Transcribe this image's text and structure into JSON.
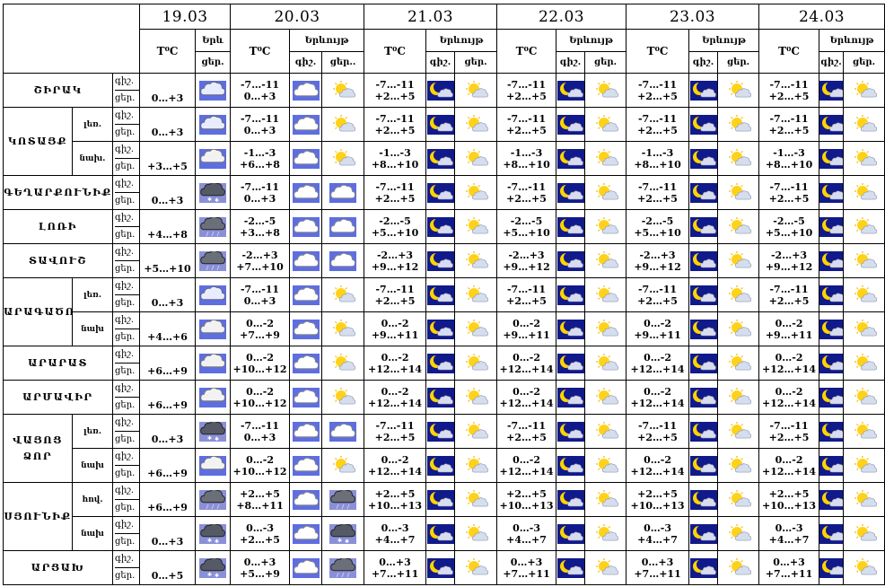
{
  "header": {
    "dates": [
      "19.03",
      "20.03",
      "21.03",
      "22.03",
      "23.03",
      "24.03"
    ],
    "temp_label": "T⁰C",
    "weather_label": "Երևույթ",
    "weather_label_short": "Երև",
    "night": "գիշ.",
    "day": "ցեր.",
    "day_trunc": "ցեր.."
  },
  "regions": [
    {
      "name": "ՇԻՐԱԿ",
      "rows": [
        {
          "zone": "",
          "d19": {
            "temp": "0…+3",
            "icon": "snow-cloud-icon"
          },
          "days": [
            {
              "temp_night": "-7…-11",
              "temp_day": "0…+3",
              "icon_night": "cloud-icon",
              "icon_day": "sun-cloud-icon"
            },
            {
              "temp_night": "-7…-11",
              "temp_day": "+2…+5",
              "icon_night": "moon-cloud-icon",
              "icon_day": "sun-cloud-icon"
            },
            {
              "temp_night": "-7…-11",
              "temp_day": "+2…+5",
              "icon_night": "moon-cloud-icon",
              "icon_day": "sun-cloud-icon"
            },
            {
              "temp_night": "-7…-11",
              "temp_day": "+2…+5",
              "icon_night": "moon-cloud-icon",
              "icon_day": "sun-cloud-icon"
            },
            {
              "temp_night": "-7…-11",
              "temp_day": "+2…+5",
              "icon_night": "moon-cloud-icon",
              "icon_day": "sun-cloud-icon"
            }
          ]
        }
      ]
    },
    {
      "name": "ԿՈՏԱՅՔ",
      "rows": [
        {
          "zone": "լեռ.",
          "d19": {
            "temp": "0…+3",
            "icon": "snow-cloud-icon"
          },
          "days": [
            {
              "temp_night": "-7…-11",
              "temp_day": "0…+3",
              "icon_night": "cloud-icon",
              "icon_day": "sun-cloud-icon"
            },
            {
              "temp_night": "-7…-11",
              "temp_day": "+2…+5",
              "icon_night": "moon-cloud-icon",
              "icon_day": "sun-cloud-icon"
            },
            {
              "temp_night": "-7…-11",
              "temp_day": "+2…+5",
              "icon_night": "moon-cloud-icon",
              "icon_day": "sun-cloud-icon"
            },
            {
              "temp_night": "-7…-11",
              "temp_day": "+2…+5",
              "icon_night": "moon-cloud-icon",
              "icon_day": "sun-cloud-icon"
            },
            {
              "temp_night": "-7…-11",
              "temp_day": "+2…+5",
              "icon_night": "moon-cloud-icon",
              "icon_day": "sun-cloud-icon"
            }
          ]
        },
        {
          "zone": "նախ.",
          "d19": {
            "temp": "+3…+5",
            "icon": "rain-cloud-icon"
          },
          "days": [
            {
              "temp_night": "-1…-3",
              "temp_day": "+6…+8",
              "icon_night": "cloud-icon",
              "icon_day": "sun-cloud-icon"
            },
            {
              "temp_night": "-1…-3",
              "temp_day": "+8…+10",
              "icon_night": "moon-cloud-icon",
              "icon_day": "sun-cloud-icon"
            },
            {
              "temp_night": "-1…-3",
              "temp_day": "+8…+10",
              "icon_night": "moon-cloud-icon",
              "icon_day": "sun-cloud-icon"
            },
            {
              "temp_night": "-1…-3",
              "temp_day": "+8…+10",
              "icon_night": "moon-cloud-icon",
              "icon_day": "sun-cloud-icon"
            },
            {
              "temp_night": "-1…-3",
              "temp_day": "+8…+10",
              "icon_night": "moon-cloud-icon",
              "icon_day": "sun-cloud-icon"
            }
          ]
        }
      ]
    },
    {
      "name": "ԳԵՂԱՐՔՈՒՆԻՔ",
      "rows": [
        {
          "zone": "",
          "d19": {
            "temp": "0…+3",
            "icon": "heavy-snow-icon"
          },
          "days": [
            {
              "temp_night": "-7…-11",
              "temp_day": "0…+3",
              "icon_night": "cloud-icon",
              "icon_day": "cloud-icon"
            },
            {
              "temp_night": "-7…-11",
              "temp_day": "+2…+5",
              "icon_night": "moon-cloud-icon",
              "icon_day": "sun-cloud-icon"
            },
            {
              "temp_night": "-7…-11",
              "temp_day": "+2…+5",
              "icon_night": "moon-cloud-icon",
              "icon_day": "sun-cloud-icon"
            },
            {
              "temp_night": "-7…-11",
              "temp_day": "+2…+5",
              "icon_night": "moon-cloud-icon",
              "icon_day": "sun-cloud-icon"
            },
            {
              "temp_night": "-7…-11",
              "temp_day": "+2…+5",
              "icon_night": "moon-cloud-icon",
              "icon_day": "sun-cloud-icon"
            }
          ]
        }
      ]
    },
    {
      "name": "ԼՈՌԻ",
      "rows": [
        {
          "zone": "",
          "d19": {
            "temp": "+4…+8",
            "icon": "heavy-rain-icon"
          },
          "days": [
            {
              "temp_night": "-2…-5",
              "temp_day": "+3…+8",
              "icon_night": "cloud-icon",
              "icon_day": "cloud-icon"
            },
            {
              "temp_night": "-2…-5",
              "temp_day": "+5…+10",
              "icon_night": "moon-cloud-icon",
              "icon_day": "sun-cloud-icon"
            },
            {
              "temp_night": "-2…-5",
              "temp_day": "+5…+10",
              "icon_night": "moon-cloud-icon",
              "icon_day": "sun-cloud-icon"
            },
            {
              "temp_night": "-2…-5",
              "temp_day": "+5…+10",
              "icon_night": "moon-cloud-icon",
              "icon_day": "sun-cloud-icon"
            },
            {
              "temp_night": "-2…-5",
              "temp_day": "+5…+10",
              "icon_night": "moon-cloud-icon",
              "icon_day": "sun-cloud-icon"
            }
          ]
        }
      ]
    },
    {
      "name": "ՏԱՎՈՒՇ",
      "rows": [
        {
          "zone": "",
          "d19": {
            "temp": "+5…+10",
            "icon": "heavy-rain-icon"
          },
          "days": [
            {
              "temp_night": "-2…+3",
              "temp_day": "+7…+10",
              "icon_night": "cloud-icon",
              "icon_day": "cloud-icon"
            },
            {
              "temp_night": "-2…+3",
              "temp_day": "+9…+12",
              "icon_night": "moon-cloud-icon",
              "icon_day": "sun-cloud-icon"
            },
            {
              "temp_night": "-2…+3",
              "temp_day": "+9…+12",
              "icon_night": "moon-cloud-icon",
              "icon_day": "sun-cloud-icon"
            },
            {
              "temp_night": "-2…+3",
              "temp_day": "+9…+12",
              "icon_night": "moon-cloud-icon",
              "icon_day": "sun-cloud-icon"
            },
            {
              "temp_night": "-2…+3",
              "temp_day": "+9…+12",
              "icon_night": "moon-cloud-icon",
              "icon_day": "sun-cloud-icon"
            }
          ]
        }
      ]
    },
    {
      "name": "ԱՐԱԳԱԾՈՏՆ",
      "rows": [
        {
          "zone": "լեռ.",
          "d19": {
            "temp": "0…+3",
            "icon": "snow-cloud-icon"
          },
          "days": [
            {
              "temp_night": "-7…-11",
              "temp_day": "0…+3",
              "icon_night": "cloud-icon",
              "icon_day": "sun-cloud-icon"
            },
            {
              "temp_night": "-7…-11",
              "temp_day": "+2…+5",
              "icon_night": "moon-cloud-icon",
              "icon_day": "sun-cloud-icon"
            },
            {
              "temp_night": "-7…-11",
              "temp_day": "+2…+5",
              "icon_night": "moon-cloud-icon",
              "icon_day": "sun-cloud-icon"
            },
            {
              "temp_night": "-7…-11",
              "temp_day": "+2…+5",
              "icon_night": "moon-cloud-icon",
              "icon_day": "sun-cloud-icon"
            },
            {
              "temp_night": "-7…-11",
              "temp_day": "+2…+5",
              "icon_night": "moon-cloud-icon",
              "icon_day": "sun-cloud-icon"
            }
          ]
        },
        {
          "zone": "նախ",
          "d19": {
            "temp": "+4…+6",
            "icon": "rain-cloud-icon"
          },
          "days": [
            {
              "temp_night": "0…-2",
              "temp_day": "+7…+9",
              "icon_night": "cloud-icon",
              "icon_day": "sun-cloud-icon"
            },
            {
              "temp_night": "0…-2",
              "temp_day": "+9…+11",
              "icon_night": "moon-cloud-icon",
              "icon_day": "sun-cloud-icon"
            },
            {
              "temp_night": "0…-2",
              "temp_day": "+9…+11",
              "icon_night": "moon-cloud-icon",
              "icon_day": "sun-cloud-icon"
            },
            {
              "temp_night": "0…-2",
              "temp_day": "+9…+11",
              "icon_night": "moon-cloud-icon",
              "icon_day": "sun-cloud-icon"
            },
            {
              "temp_night": "0…-2",
              "temp_day": "+9…+11",
              "icon_night": "moon-cloud-icon",
              "icon_day": "sun-cloud-icon"
            }
          ]
        }
      ]
    },
    {
      "name": "ԱՐԱՐԱՏ",
      "rows": [
        {
          "zone": "",
          "d19": {
            "temp": "+6…+9",
            "icon": "rain-cloud-icon"
          },
          "days": [
            {
              "temp_night": "0…-2",
              "temp_day": "+10…+12",
              "icon_night": "cloud-icon",
              "icon_day": "sun-cloud-icon"
            },
            {
              "temp_night": "0…-2",
              "temp_day": "+12…+14",
              "icon_night": "moon-cloud-icon",
              "icon_day": "sun-cloud-icon"
            },
            {
              "temp_night": "0…-2",
              "temp_day": "+12…+14",
              "icon_night": "moon-cloud-icon",
              "icon_day": "sun-cloud-icon"
            },
            {
              "temp_night": "0…-2",
              "temp_day": "+12…+14",
              "icon_night": "moon-cloud-icon",
              "icon_day": "sun-cloud-icon"
            },
            {
              "temp_night": "0…-2",
              "temp_day": "+12…+14",
              "icon_night": "moon-cloud-icon",
              "icon_day": "sun-cloud-icon"
            }
          ]
        }
      ]
    },
    {
      "name": "ԱՐՄԱՎԻՐ",
      "rows": [
        {
          "zone": "",
          "d19": {
            "temp": "+6…+9",
            "icon": "rain-cloud-icon"
          },
          "days": [
            {
              "temp_night": "0…-2",
              "temp_day": "+10…+12",
              "icon_night": "cloud-icon",
              "icon_day": "sun-cloud-icon"
            },
            {
              "temp_night": "0…-2",
              "temp_day": "+12…+14",
              "icon_night": "moon-cloud-icon",
              "icon_day": "sun-cloud-icon"
            },
            {
              "temp_night": "0…-2",
              "temp_day": "+12…+14",
              "icon_night": "moon-cloud-icon",
              "icon_day": "sun-cloud-icon"
            },
            {
              "temp_night": "0…-2",
              "temp_day": "+12…+14",
              "icon_night": "moon-cloud-icon",
              "icon_day": "sun-cloud-icon"
            },
            {
              "temp_night": "0…-2",
              "temp_day": "+12…+14",
              "icon_night": "moon-cloud-icon",
              "icon_day": "sun-cloud-icon"
            }
          ]
        }
      ]
    },
    {
      "name": "ՎԱՅՈՑ ՁՈՐ",
      "rows": [
        {
          "zone": "լեռ.",
          "d19": {
            "temp": "0…+3",
            "icon": "heavy-snow-icon"
          },
          "days": [
            {
              "temp_night": "-7…-11",
              "temp_day": "0…+3",
              "icon_night": "cloud-icon",
              "icon_day": "cloud-icon"
            },
            {
              "temp_night": "-7…-11",
              "temp_day": "+2…+5",
              "icon_night": "moon-cloud-icon",
              "icon_day": "sun-cloud-icon"
            },
            {
              "temp_night": "-7…-11",
              "temp_day": "+2…+5",
              "icon_night": "moon-cloud-icon",
              "icon_day": "sun-cloud-icon"
            },
            {
              "temp_night": "-7…-11",
              "temp_day": "+2…+5",
              "icon_night": "moon-cloud-icon",
              "icon_day": "sun-cloud-icon"
            },
            {
              "temp_night": "-7…-11",
              "temp_day": "+2…+5",
              "icon_night": "moon-cloud-icon",
              "icon_day": "sun-cloud-icon"
            }
          ]
        },
        {
          "zone": "նախ",
          "d19": {
            "temp": "+6…+9",
            "icon": "rain-cloud-icon"
          },
          "days": [
            {
              "temp_night": "0…-2",
              "temp_day": "+10…+12",
              "icon_night": "cloud-icon",
              "icon_day": "sun-cloud-icon"
            },
            {
              "temp_night": "0…-2",
              "temp_day": "+12…+14",
              "icon_night": "moon-cloud-icon",
              "icon_day": "sun-cloud-icon"
            },
            {
              "temp_night": "0…-2",
              "temp_day": "+12…+14",
              "icon_night": "moon-cloud-icon",
              "icon_day": "sun-cloud-icon"
            },
            {
              "temp_night": "0…-2",
              "temp_day": "+12…+14",
              "icon_night": "moon-cloud-icon",
              "icon_day": "sun-cloud-icon"
            },
            {
              "temp_night": "0…-2",
              "temp_day": "+12…+14",
              "icon_night": "moon-cloud-icon",
              "icon_day": "sun-cloud-icon"
            }
          ]
        }
      ]
    },
    {
      "name": "ՍՅՈՒՆԻՔ",
      "rows": [
        {
          "zone": "հով.",
          "d19": {
            "temp": "+6…+9",
            "icon": "heavy-rain-icon"
          },
          "days": [
            {
              "temp_night": "+2…+5",
              "temp_day": "+8…+11",
              "icon_night": "cloud-icon",
              "icon_day": "heavy-rain-icon"
            },
            {
              "temp_night": "+2…+5",
              "temp_day": "+10…+13",
              "icon_night": "moon-cloud-icon",
              "icon_day": "sun-cloud-icon"
            },
            {
              "temp_night": "+2…+5",
              "temp_day": "+10…+13",
              "icon_night": "moon-cloud-icon",
              "icon_day": "sun-cloud-icon"
            },
            {
              "temp_night": "+2…+5",
              "temp_day": "+10…+13",
              "icon_night": "moon-cloud-icon",
              "icon_day": "sun-cloud-icon"
            },
            {
              "temp_night": "+2…+5",
              "temp_day": "+10…+13",
              "icon_night": "moon-cloud-icon",
              "icon_day": "sun-cloud-icon"
            }
          ]
        },
        {
          "zone": "նախ",
          "d19": {
            "temp": "0…+3",
            "icon": "heavy-snow-icon"
          },
          "days": [
            {
              "temp_night": "0…-3",
              "temp_day": "+2…+5",
              "icon_night": "cloud-icon",
              "icon_day": "heavy-snow-icon"
            },
            {
              "temp_night": "0…-3",
              "temp_day": "+4…+7",
              "icon_night": "moon-cloud-icon",
              "icon_day": "sun-cloud-icon"
            },
            {
              "temp_night": "0…-3",
              "temp_day": "+4…+7",
              "icon_night": "moon-cloud-icon",
              "icon_day": "sun-cloud-icon"
            },
            {
              "temp_night": "0…-3",
              "temp_day": "+4…+7",
              "icon_night": "moon-cloud-icon",
              "icon_day": "sun-cloud-icon"
            },
            {
              "temp_night": "0…-3",
              "temp_day": "+4…+7",
              "icon_night": "moon-cloud-icon",
              "icon_day": "sun-cloud-icon"
            }
          ]
        }
      ]
    },
    {
      "name": "ԱՐՑԱԽ",
      "rows": [
        {
          "zone": "",
          "d19": {
            "temp": "0…+5",
            "icon": "heavy-snow-icon"
          },
          "days": [
            {
              "temp_night": "0…+3",
              "temp_day": "+5…+9",
              "icon_night": "cloud-icon",
              "icon_day": "heavy-rain-icon"
            },
            {
              "temp_night": "0…+3",
              "temp_day": "+7…+11",
              "icon_night": "moon-cloud-icon",
              "icon_day": "sun-cloud-icon"
            },
            {
              "temp_night": "0…+3",
              "temp_day": "+7…+11",
              "icon_night": "moon-cloud-icon",
              "icon_day": "sun-cloud-icon"
            },
            {
              "temp_night": "0…+3",
              "temp_day": "+7…+11",
              "icon_night": "moon-cloud-icon",
              "icon_day": "sun-cloud-icon"
            },
            {
              "temp_night": "0…+3",
              "temp_day": "+7…+11",
              "icon_night": "moon-cloud-icon",
              "icon_day": "sun-cloud-icon"
            }
          ]
        }
      ]
    }
  ]
}
